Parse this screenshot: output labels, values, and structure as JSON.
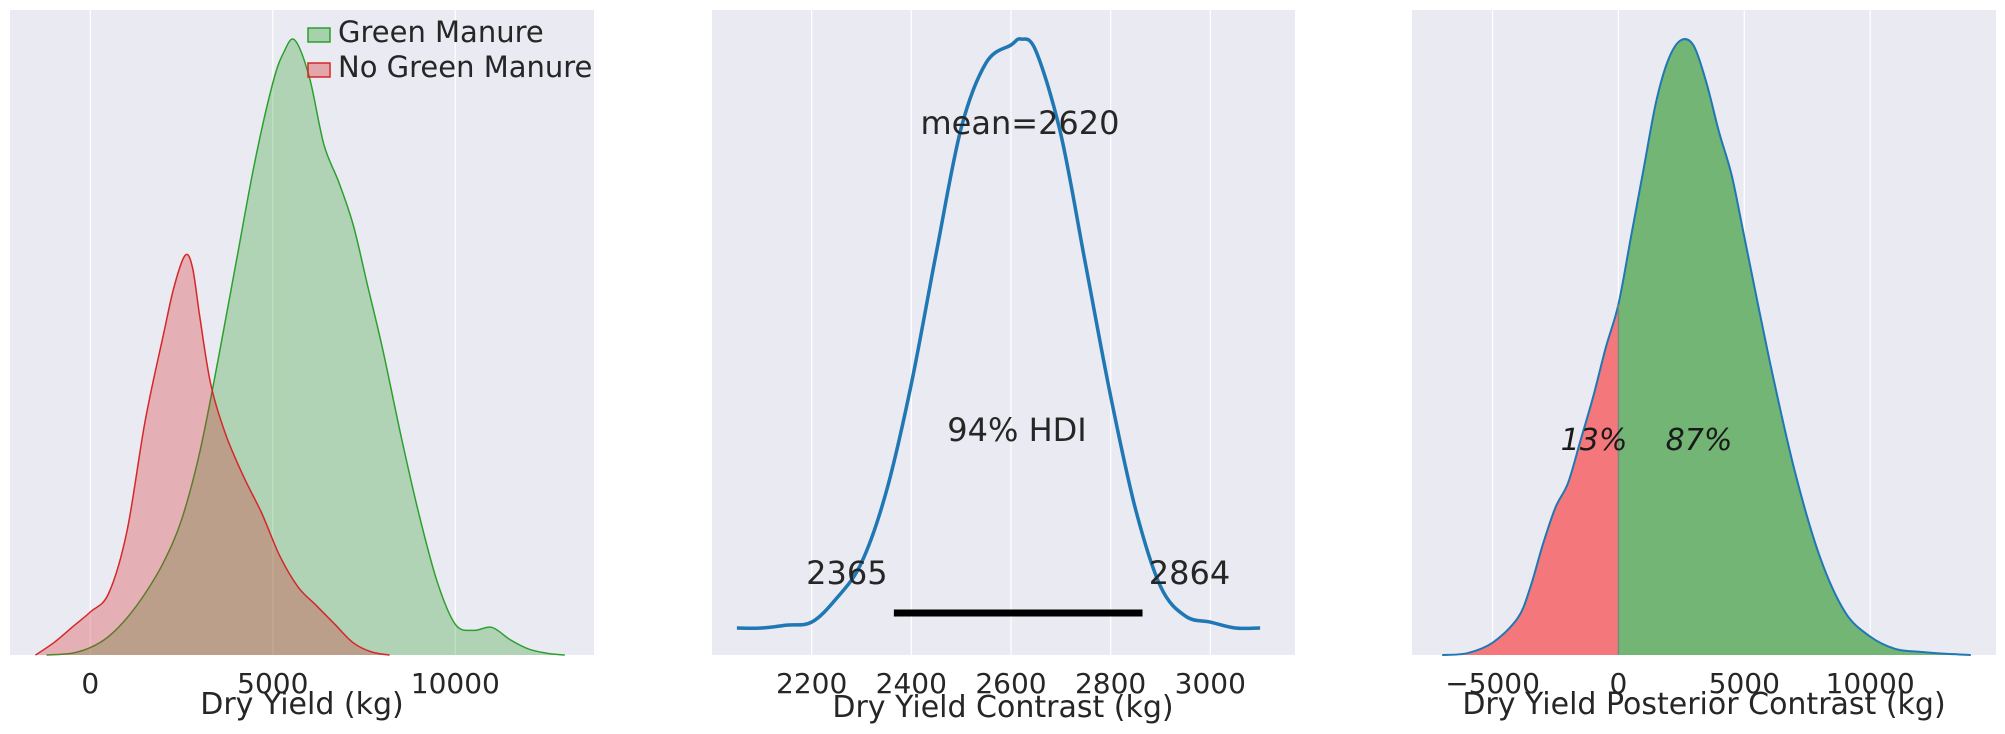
{
  "chart_data": [
    {
      "type": "area",
      "xlabel": "Dry Yield (kg)",
      "xticks": [
        0,
        5000,
        10000
      ],
      "xlim": [
        -2200,
        13800
      ],
      "legend_position": "top-right",
      "grid": true,
      "series": [
        {
          "name": "Green Manure",
          "color": "#2ca02c",
          "x": [
            -1200,
            -500,
            0,
            500,
            1000,
            1500,
            2000,
            2500,
            3000,
            3500,
            4000,
            4500,
            5000,
            5300,
            5600,
            6000,
            6400,
            6800,
            7200,
            7600,
            8000,
            8500,
            9000,
            9500,
            10000,
            10500,
            11000,
            11500,
            12000,
            12500,
            13000
          ],
          "density": [
            0.0,
            0.003,
            0.012,
            0.03,
            0.06,
            0.1,
            0.15,
            0.22,
            0.33,
            0.48,
            0.64,
            0.8,
            0.93,
            0.98,
            1.0,
            0.94,
            0.83,
            0.77,
            0.7,
            0.6,
            0.5,
            0.36,
            0.23,
            0.12,
            0.05,
            0.04,
            0.045,
            0.025,
            0.01,
            0.003,
            0.0
          ]
        },
        {
          "name": "No Green Manure",
          "color": "#d62728",
          "x": [
            -1500,
            -1000,
            -500,
            0,
            500,
            1000,
            1500,
            2000,
            2300,
            2600,
            2800,
            3000,
            3300,
            3700,
            4200,
            4700,
            5200,
            5700,
            6200,
            6700,
            7200,
            7700,
            8200
          ],
          "density": [
            0.0,
            0.02,
            0.045,
            0.07,
            0.1,
            0.2,
            0.38,
            0.52,
            0.6,
            0.65,
            0.63,
            0.55,
            0.44,
            0.36,
            0.29,
            0.23,
            0.16,
            0.11,
            0.08,
            0.05,
            0.02,
            0.005,
            0.0
          ]
        }
      ]
    },
    {
      "type": "line",
      "xlabel": "Dry Yield Contrast (kg)",
      "xticks": [
        2200,
        2400,
        2600,
        2800,
        3000
      ],
      "xlim": [
        2000,
        3170
      ],
      "grid": true,
      "mean_label": "mean=2620",
      "hdi_label": "94% HDI",
      "hdi_low_label": "2365",
      "hdi_high_label": "2864",
      "hdi": [
        2365,
        2864
      ],
      "color": "#1f77b4",
      "series": [
        {
          "x": [
            2050,
            2100,
            2150,
            2200,
            2250,
            2300,
            2350,
            2400,
            2450,
            2500,
            2550,
            2600,
            2620,
            2650,
            2700,
            2750,
            2800,
            2850,
            2900,
            2950,
            3000,
            3050,
            3100
          ],
          "density": [
            0.01,
            0.01,
            0.015,
            0.02,
            0.06,
            0.12,
            0.24,
            0.42,
            0.64,
            0.85,
            0.96,
            0.99,
            1.0,
            0.98,
            0.84,
            0.62,
            0.4,
            0.21,
            0.08,
            0.03,
            0.02,
            0.01,
            0.01
          ]
        }
      ]
    },
    {
      "type": "area",
      "xlabel": "Dry Yield Posterior Contrast (kg)",
      "xticks": [
        "−5000",
        "0",
        "5000",
        "10000"
      ],
      "xlim": [
        -8200,
        15000
      ],
      "grid": true,
      "split_at": 0,
      "percent_below": "13%",
      "percent_above": "87%",
      "color_below": "#f4777c",
      "color_above": "#72b574",
      "line_color": "#1f77b4",
      "series": [
        {
          "x": [
            -7000,
            -6000,
            -5000,
            -4000,
            -3500,
            -3000,
            -2500,
            -2000,
            -1500,
            -1000,
            -500,
            0,
            500,
            1000,
            1500,
            2000,
            2500,
            3000,
            3500,
            4000,
            4500,
            5000,
            6000,
            7000,
            8000,
            9000,
            10000,
            11000,
            12000,
            13000,
            14000
          ],
          "density": [
            0.0,
            0.003,
            0.02,
            0.06,
            0.11,
            0.18,
            0.24,
            0.28,
            0.35,
            0.42,
            0.5,
            0.57,
            0.68,
            0.79,
            0.9,
            0.97,
            1.0,
            0.99,
            0.93,
            0.85,
            0.78,
            0.68,
            0.48,
            0.3,
            0.16,
            0.07,
            0.03,
            0.01,
            0.005,
            0.002,
            0.0
          ]
        }
      ]
    }
  ]
}
